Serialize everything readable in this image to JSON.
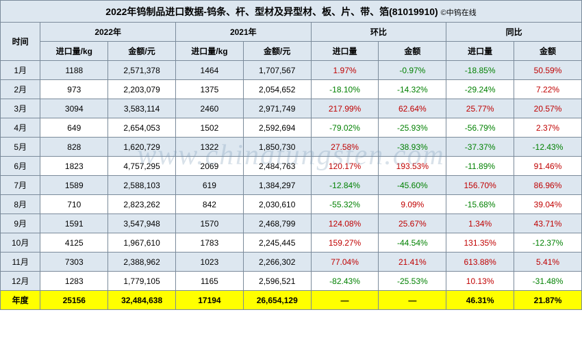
{
  "title": "2022年钨制品进口数据-钨条、杆、型材及异型材、板、片、带、箔(81019910)",
  "copyright": "©中钨在线",
  "watermark": "www.chinatungsten.com",
  "colors": {
    "header_bg": "#dde7f0",
    "alt_row_bg": "#dde7f0",
    "white_bg": "#ffffff",
    "year_bg": "#ffff00",
    "border": "#7a8a9a",
    "positive": "#c00000",
    "negative": "#008000",
    "text": "#000000"
  },
  "headers": {
    "time": "时间",
    "y2022": "2022年",
    "y2021": "2021年",
    "mom": "环比",
    "yoy": "同比",
    "import_qty": "进口量/kg",
    "amount": "金额/元",
    "import_qty_short": "进口量",
    "amount_short": "金额"
  },
  "rows": [
    {
      "month": "1月",
      "q22": "1188",
      "a22": "2,571,378",
      "q21": "1464",
      "a21": "1,707,567",
      "mq": "1.97%",
      "mqs": 1,
      "ma": "-0.97%",
      "mas": -1,
      "yq": "-18.85%",
      "yqs": -1,
      "ya": "50.59%",
      "yas": 1
    },
    {
      "month": "2月",
      "q22": "973",
      "a22": "2,203,079",
      "q21": "1375",
      "a21": "2,054,652",
      "mq": "-18.10%",
      "mqs": -1,
      "ma": "-14.32%",
      "mas": -1,
      "yq": "-29.24%",
      "yqs": -1,
      "ya": "7.22%",
      "yas": 1
    },
    {
      "month": "3月",
      "q22": "3094",
      "a22": "3,583,114",
      "q21": "2460",
      "a21": "2,971,749",
      "mq": "217.99%",
      "mqs": 1,
      "ma": "62.64%",
      "mas": 1,
      "yq": "25.77%",
      "yqs": 1,
      "ya": "20.57%",
      "yas": 1
    },
    {
      "month": "4月",
      "q22": "649",
      "a22": "2,654,053",
      "q21": "1502",
      "a21": "2,592,694",
      "mq": "-79.02%",
      "mqs": -1,
      "ma": "-25.93%",
      "mas": -1,
      "yq": "-56.79%",
      "yqs": -1,
      "ya": "2.37%",
      "yas": 1
    },
    {
      "month": "5月",
      "q22": "828",
      "a22": "1,620,729",
      "q21": "1322",
      "a21": "1,850,730",
      "mq": "27.58%",
      "mqs": 1,
      "ma": "-38.93%",
      "mas": -1,
      "yq": "-37.37%",
      "yqs": -1,
      "ya": "-12.43%",
      "yas": -1
    },
    {
      "month": "6月",
      "q22": "1823",
      "a22": "4,757,295",
      "q21": "2069",
      "a21": "2,484,763",
      "mq": "120.17%",
      "mqs": 1,
      "ma": "193.53%",
      "mas": 1,
      "yq": "-11.89%",
      "yqs": -1,
      "ya": "91.46%",
      "yas": 1
    },
    {
      "month": "7月",
      "q22": "1589",
      "a22": "2,588,103",
      "q21": "619",
      "a21": "1,384,297",
      "mq": "-12.84%",
      "mqs": -1,
      "ma": "-45.60%",
      "mas": -1,
      "yq": "156.70%",
      "yqs": 1,
      "ya": "86.96%",
      "yas": 1
    },
    {
      "month": "8月",
      "q22": "710",
      "a22": "2,823,262",
      "q21": "842",
      "a21": "2,030,610",
      "mq": "-55.32%",
      "mqs": -1,
      "ma": "9.09%",
      "mas": 1,
      "yq": "-15.68%",
      "yqs": -1,
      "ya": "39.04%",
      "yas": 1
    },
    {
      "month": "9月",
      "q22": "1591",
      "a22": "3,547,948",
      "q21": "1570",
      "a21": "2,468,799",
      "mq": "124.08%",
      "mqs": 1,
      "ma": "25.67%",
      "mas": 1,
      "yq": "1.34%",
      "yqs": 1,
      "ya": "43.71%",
      "yas": 1
    },
    {
      "month": "10月",
      "q22": "4125",
      "a22": "1,967,610",
      "q21": "1783",
      "a21": "2,245,445",
      "mq": "159.27%",
      "mqs": 1,
      "ma": "-44.54%",
      "mas": -1,
      "yq": "131.35%",
      "yqs": 1,
      "ya": "-12.37%",
      "yas": -1
    },
    {
      "month": "11月",
      "q22": "7303",
      "a22": "2,388,962",
      "q21": "1023",
      "a21": "2,266,302",
      "mq": "77.04%",
      "mqs": 1,
      "ma": "21.41%",
      "mas": 1,
      "yq": "613.88%",
      "yqs": 1,
      "ya": "5.41%",
      "yas": 1
    },
    {
      "month": "12月",
      "q22": "1283",
      "a22": "1,779,105",
      "q21": "1165",
      "a21": "2,596,521",
      "mq": "-82.43%",
      "mqs": -1,
      "ma": "-25.53%",
      "mas": -1,
      "yq": "10.13%",
      "yqs": 1,
      "ya": "-31.48%",
      "yas": -1
    }
  ],
  "year_row": {
    "label": "年度",
    "q22": "25156",
    "a22": "32,484,638",
    "q21": "17194",
    "a21": "26,654,129",
    "mq": "—",
    "ma": "—",
    "yq": "46.31%",
    "yqs": 1,
    "ya": "21.87%",
    "yas": 1
  }
}
